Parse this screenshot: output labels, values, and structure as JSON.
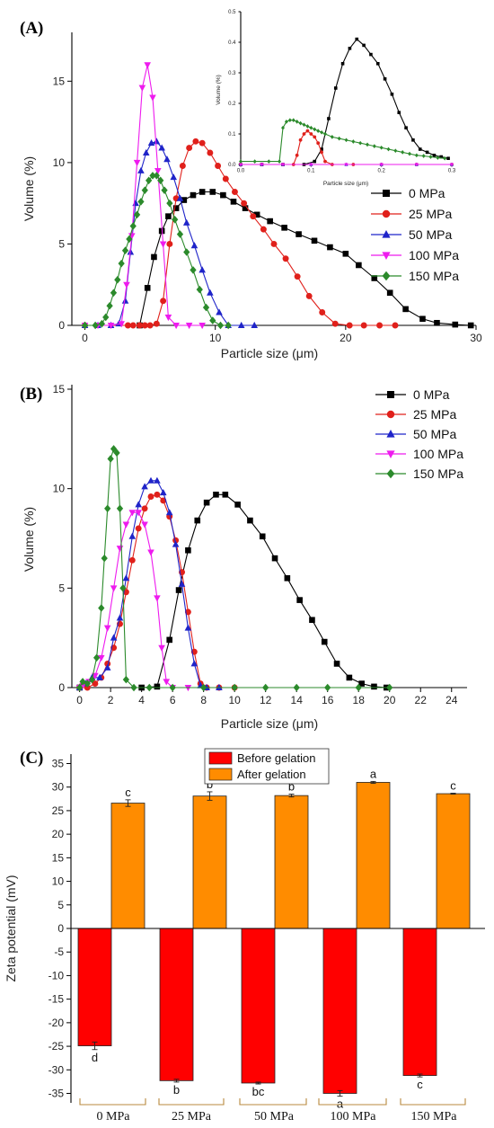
{
  "panel_labels": {
    "a": "(A)",
    "b": "(B)",
    "c": "(C)"
  },
  "colors": {
    "0 MPa": "#000000",
    "25 MPa": "#e0201b",
    "50 MPa": "#1f24c9",
    "100 MPa": "#ee1bee",
    "150 MPa": "#2b8a2b",
    "before": "#ff0000",
    "after": "#ff8c00",
    "bracket": "#b8893e"
  },
  "markers": {
    "0 MPa": "square",
    "25 MPa": "circle",
    "50 MPa": "triangle-up",
    "100 MPa": "triangle-down",
    "150 MPa": "diamond"
  },
  "chart_data": [
    {
      "id": "A",
      "type": "line",
      "xlabel": "Particle size (μm)",
      "ylabel": "Volume (%)",
      "xlim": [
        -1,
        30
      ],
      "ylim": [
        0,
        18
      ],
      "xticks": [
        0,
        10,
        20,
        30
      ],
      "yticks": [
        0,
        5,
        10,
        15
      ],
      "legend": "right",
      "grid": false,
      "series": [
        {
          "name": "0 MPa",
          "x": [
            4.2,
            4.8,
            5.3,
            5.9,
            6.4,
            7.0,
            7.6,
            8.3,
            9.0,
            9.8,
            10.6,
            11.4,
            12.3,
            13.2,
            14.2,
            15.3,
            16.4,
            17.6,
            18.8,
            20.0,
            21.0,
            22.2,
            23.4,
            24.6,
            25.9,
            27.0,
            28.4,
            29.6
          ],
          "y": [
            0,
            2.3,
            4.2,
            5.8,
            6.7,
            7.2,
            7.7,
            8.0,
            8.2,
            8.2,
            8.0,
            7.6,
            7.2,
            6.8,
            6.4,
            6.0,
            5.6,
            5.2,
            4.8,
            4.4,
            3.7,
            2.9,
            2.0,
            1.0,
            0.4,
            0.15,
            0.05,
            0
          ]
        },
        {
          "name": "25 MPa",
          "x": [
            0,
            3.3,
            3.7,
            4.2,
            4.6,
            5.0,
            5.5,
            6.0,
            6.5,
            7.0,
            7.5,
            8.0,
            8.5,
            9.0,
            9.6,
            10.2,
            10.8,
            11.5,
            12.2,
            12.9,
            13.7,
            14.5,
            15.4,
            16.3,
            17.2,
            18.2,
            19.2,
            20.3,
            21.4,
            22.6,
            23.8
          ],
          "y": [
            0,
            0,
            0,
            0,
            0,
            0,
            0.1,
            1.5,
            5.0,
            7.8,
            9.8,
            10.9,
            11.3,
            11.2,
            10.6,
            9.8,
            9.0,
            8.2,
            7.5,
            6.7,
            5.9,
            5.0,
            4.1,
            3.0,
            1.8,
            0.8,
            0.1,
            0,
            0,
            0,
            0
          ]
        },
        {
          "name": "50 MPa",
          "x": [
            0,
            1.0,
            2.0,
            2.6,
            3.1,
            3.5,
            3.9,
            4.3,
            4.7,
            5.1,
            5.5,
            5.9,
            6.3,
            6.8,
            7.3,
            7.8,
            8.4,
            9.0,
            9.6,
            10.3,
            11.0,
            12.0,
            13.0
          ],
          "y": [
            0,
            0,
            0,
            0.1,
            1.5,
            4.5,
            7.5,
            9.5,
            10.6,
            11.2,
            11.3,
            10.9,
            10.2,
            9.1,
            7.8,
            6.3,
            4.9,
            3.4,
            2.0,
            0.8,
            0,
            0,
            0
          ]
        },
        {
          "name": "100 MPa",
          "x": [
            0,
            1.0,
            2.0,
            2.8,
            3.2,
            3.6,
            4.0,
            4.4,
            4.8,
            5.2,
            5.6,
            6.0,
            6.4,
            7.0,
            8.0,
            9.0
          ],
          "y": [
            0,
            0,
            0,
            0.1,
            2.5,
            5.5,
            10.0,
            14.6,
            16.0,
            14.0,
            9.5,
            5.0,
            0.5,
            0,
            0,
            0
          ]
        },
        {
          "name": "150 MPa",
          "x": [
            0,
            0.8,
            1.3,
            1.6,
            1.9,
            2.2,
            2.5,
            2.8,
            3.1,
            3.4,
            3.7,
            4.0,
            4.3,
            4.6,
            4.9,
            5.2,
            5.5,
            5.8,
            6.1,
            6.5,
            6.9,
            7.3,
            7.8,
            8.3,
            8.8,
            9.3,
            9.8,
            10.4,
            11.0
          ],
          "y": [
            0,
            0,
            0.1,
            0.5,
            1.2,
            2.0,
            2.8,
            3.8,
            4.6,
            5.3,
            6.1,
            6.8,
            7.6,
            8.3,
            8.9,
            9.2,
            9.2,
            8.9,
            8.3,
            7.5,
            6.5,
            5.6,
            4.5,
            3.4,
            2.2,
            1.1,
            0.3,
            0,
            0
          ]
        }
      ]
    },
    {
      "id": "A-inset",
      "type": "line",
      "xlabel": "Particle size (μm)",
      "ylabel": "Volume (%)",
      "xlim": [
        0,
        0.3
      ],
      "ylim": [
        0,
        0.5
      ],
      "xticks": [
        0.0,
        0.1,
        0.2,
        0.3
      ],
      "yticks": [
        0.0,
        0.1,
        0.2,
        0.3,
        0.4,
        0.5
      ],
      "series": [
        {
          "name": "0 MPa",
          "x": [
            0,
            0.03,
            0.06,
            0.09,
            0.105,
            0.115,
            0.125,
            0.135,
            0.145,
            0.155,
            0.165,
            0.175,
            0.185,
            0.195,
            0.205,
            0.215,
            0.225,
            0.235,
            0.245,
            0.255,
            0.265,
            0.275,
            0.285,
            0.295
          ],
          "y": [
            0,
            0,
            0,
            0,
            0.01,
            0.05,
            0.15,
            0.25,
            0.33,
            0.38,
            0.41,
            0.39,
            0.36,
            0.33,
            0.28,
            0.23,
            0.17,
            0.12,
            0.08,
            0.05,
            0.04,
            0.03,
            0.025,
            0.02
          ]
        },
        {
          "name": "25 MPa",
          "x": [
            0,
            0.03,
            0.06,
            0.075,
            0.08,
            0.085,
            0.09,
            0.095,
            0.1,
            0.105,
            0.11,
            0.115,
            0.12,
            0.13,
            0.16,
            0.2,
            0.25,
            0.3
          ],
          "y": [
            0,
            0,
            0,
            0,
            0.03,
            0.08,
            0.1,
            0.11,
            0.1,
            0.09,
            0.07,
            0.04,
            0.01,
            0,
            0,
            0,
            0,
            0
          ]
        },
        {
          "name": "50 MPa",
          "x": [
            0,
            0.03,
            0.06,
            0.1,
            0.15,
            0.2,
            0.25,
            0.3
          ],
          "y": [
            0,
            0,
            0,
            0,
            0,
            0,
            0,
            0
          ]
        },
        {
          "name": "100 MPa",
          "x": [
            0,
            0.03,
            0.06,
            0.1,
            0.15,
            0.2,
            0.25,
            0.3
          ],
          "y": [
            0,
            0,
            0,
            0,
            0,
            0,
            0,
            0
          ]
        },
        {
          "name": "150 MPa",
          "x": [
            0,
            0.02,
            0.04,
            0.055,
            0.06,
            0.065,
            0.07,
            0.075,
            0.08,
            0.085,
            0.09,
            0.095,
            0.1,
            0.105,
            0.11,
            0.115,
            0.12,
            0.13,
            0.14,
            0.15,
            0.16,
            0.17,
            0.18,
            0.19,
            0.2,
            0.21,
            0.22,
            0.23,
            0.24,
            0.25,
            0.26,
            0.27,
            0.28,
            0.29
          ],
          "y": [
            0.01,
            0.01,
            0.01,
            0.01,
            0.12,
            0.14,
            0.145,
            0.145,
            0.14,
            0.135,
            0.13,
            0.125,
            0.12,
            0.115,
            0.11,
            0.105,
            0.1,
            0.09,
            0.085,
            0.08,
            0.075,
            0.07,
            0.065,
            0.06,
            0.055,
            0.05,
            0.045,
            0.04,
            0.035,
            0.03,
            0.028,
            0.025,
            0.022,
            0.02
          ]
        }
      ]
    },
    {
      "id": "B",
      "type": "line",
      "xlabel": "Particle size (μm)",
      "ylabel": "Volume (%)",
      "xlim": [
        -0.5,
        25
      ],
      "ylim": [
        0,
        15
      ],
      "xticks": [
        0,
        2,
        4,
        6,
        8,
        10,
        12,
        14,
        16,
        18,
        20,
        22,
        24
      ],
      "yticks": [
        0,
        5,
        10,
        15
      ],
      "legend": "top-right",
      "grid": false,
      "series": [
        {
          "name": "0 MPa",
          "x": [
            0,
            4.0,
            5.0,
            5.8,
            6.4,
            7.0,
            7.6,
            8.2,
            8.8,
            9.4,
            10.2,
            11.0,
            11.8,
            12.6,
            13.4,
            14.2,
            15.0,
            15.8,
            16.6,
            17.4,
            18.2,
            19.0,
            19.8
          ],
          "y": [
            0,
            0,
            0.05,
            2.4,
            4.9,
            6.9,
            8.4,
            9.3,
            9.7,
            9.7,
            9.2,
            8.4,
            7.6,
            6.5,
            5.5,
            4.4,
            3.4,
            2.3,
            1.2,
            0.5,
            0.2,
            0.05,
            0
          ]
        },
        {
          "name": "25 MPa",
          "x": [
            0,
            0.5,
            1.0,
            1.4,
            1.8,
            2.2,
            2.6,
            3.0,
            3.4,
            3.8,
            4.2,
            4.6,
            5.0,
            5.4,
            5.8,
            6.2,
            6.6,
            7.0,
            7.4,
            7.8,
            8.2,
            9.0,
            10.0
          ],
          "y": [
            0,
            0,
            0.2,
            0.5,
            1.2,
            2.0,
            3.2,
            4.8,
            6.4,
            8.0,
            9.0,
            9.6,
            9.7,
            9.4,
            8.6,
            7.4,
            5.8,
            3.8,
            1.8,
            0.2,
            0,
            0,
            0
          ]
        },
        {
          "name": "50 MPa",
          "x": [
            0,
            0.4,
            0.8,
            1.3,
            1.8,
            2.2,
            2.6,
            3.0,
            3.4,
            3.8,
            4.2,
            4.6,
            5.0,
            5.4,
            5.8,
            6.2,
            6.6,
            7.0,
            7.4,
            7.8,
            8.2,
            9.0
          ],
          "y": [
            0,
            0.2,
            0.5,
            0.5,
            1.0,
            2.5,
            3.5,
            5.5,
            7.6,
            9.2,
            10.1,
            10.4,
            10.4,
            9.8,
            8.8,
            7.2,
            5.2,
            3.0,
            1.2,
            0.1,
            0,
            0
          ]
        },
        {
          "name": "100 MPa",
          "x": [
            0,
            0.2,
            0.6,
            1.0,
            1.4,
            1.8,
            2.2,
            2.6,
            3.0,
            3.4,
            3.8,
            4.2,
            4.6,
            5.0,
            5.3,
            5.6,
            6.0,
            7.0
          ],
          "y": [
            0,
            0.1,
            0.3,
            0.6,
            1.5,
            3.0,
            5.0,
            7.0,
            8.2,
            8.8,
            8.8,
            8.2,
            6.8,
            4.5,
            2.0,
            0.3,
            0,
            0
          ]
        },
        {
          "name": "150 MPa",
          "x": [
            0,
            0.2,
            0.5,
            0.8,
            1.1,
            1.4,
            1.6,
            1.8,
            2.0,
            2.2,
            2.4,
            2.6,
            2.8,
            3.0,
            3.5,
            4.5,
            6,
            8,
            10,
            12,
            14,
            16,
            18,
            20
          ],
          "y": [
            0,
            0.3,
            0.2,
            0.4,
            1.5,
            4.0,
            6.5,
            9.0,
            11.5,
            12.0,
            11.8,
            9.0,
            5.0,
            0.4,
            0,
            0,
            0,
            0,
            0,
            0,
            0,
            0,
            0,
            0
          ]
        }
      ]
    },
    {
      "id": "C",
      "type": "bar",
      "ylabel": "Zeta potential (mV)",
      "ylim": [
        -37,
        37
      ],
      "yticks": [
        -35,
        -30,
        -25,
        -20,
        -15,
        -10,
        -5,
        0,
        5,
        10,
        15,
        20,
        25,
        30,
        35
      ],
      "legend": "top-center",
      "categories": [
        "0 MPa",
        "25 MPa",
        "50 MPa",
        "100 MPa",
        "150 MPa"
      ],
      "series": [
        {
          "name": "Before gelation",
          "values": [
            -24.9,
            -32.3,
            -32.8,
            -35.0,
            -31.2
          ],
          "errors": [
            0.8,
            0.3,
            0.2,
            0.6,
            0.3
          ],
          "letters": [
            "d",
            "b",
            "bc",
            "a",
            "c"
          ]
        },
        {
          "name": "After gelation",
          "values": [
            26.6,
            28.1,
            28.2,
            31.0,
            28.6
          ],
          "errors": [
            0.7,
            0.9,
            0.3,
            0.2,
            0.1
          ],
          "letters": [
            "c",
            "b",
            "b",
            "a",
            "c"
          ]
        }
      ]
    }
  ]
}
